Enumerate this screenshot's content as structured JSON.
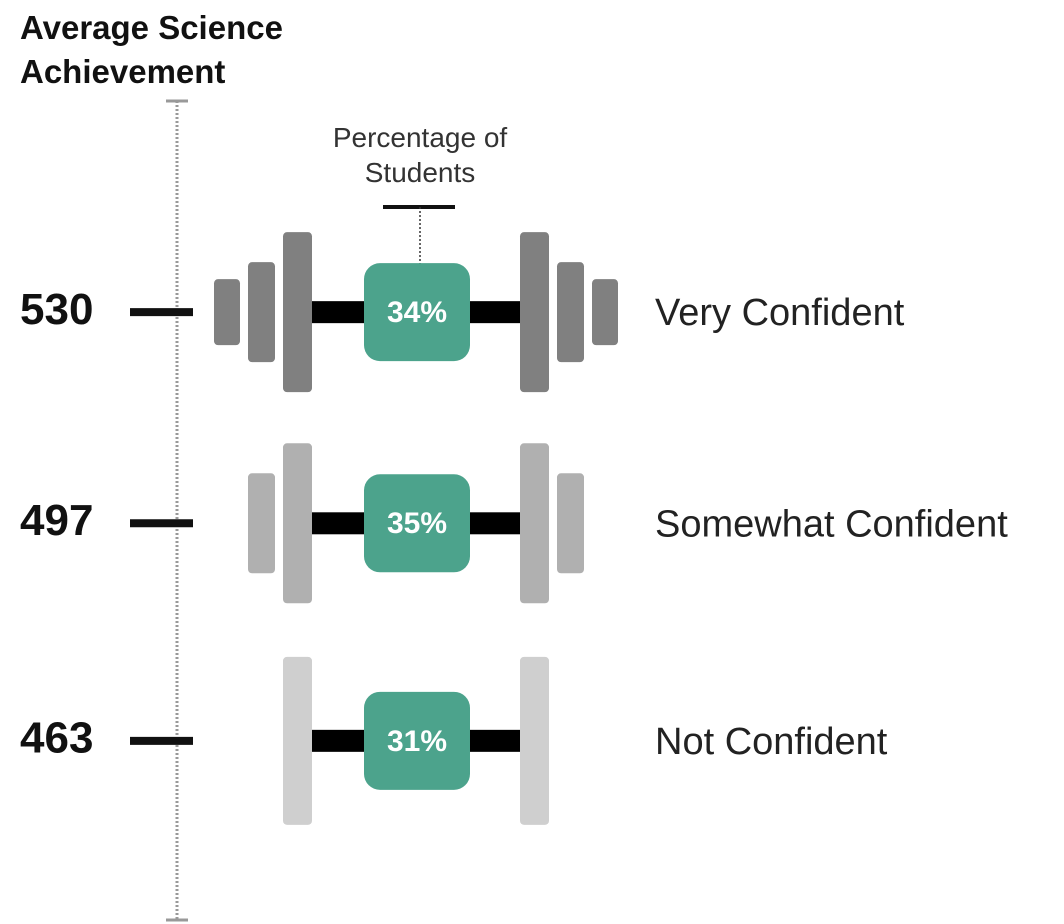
{
  "chart_data": {
    "type": "dumbbell",
    "title": "Average Science Achievement",
    "annotation": "Percentage of Students",
    "categories": [
      "Very Confident",
      "Somewhat Confident",
      "Not Confident"
    ],
    "values": [
      530,
      497,
      463
    ],
    "shares": [
      34,
      35,
      31
    ],
    "share_labels": [
      "34%",
      "35%",
      "31%"
    ],
    "ylim": [
      435,
      563
    ],
    "plate_colors": [
      "#808080",
      "#b0b0b0",
      "#cfcfcf"
    ],
    "box_color": "#4ca38c"
  }
}
